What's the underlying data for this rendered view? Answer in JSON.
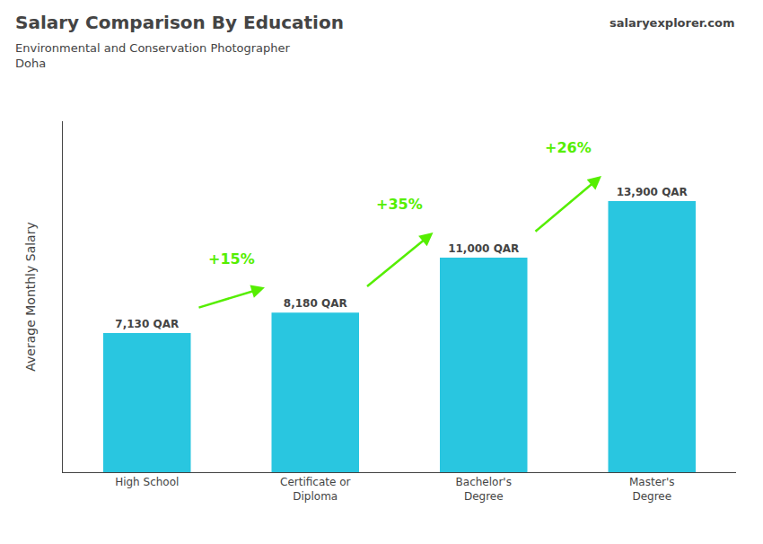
{
  "chart_data": {
    "type": "bar",
    "title": "Salary Comparison By Education",
    "subtitle": "Environmental and Conservation Photographer\nDoha",
    "categories": [
      "High School",
      "Certificate or\nDiploma",
      "Bachelor's\nDegree",
      "Master's\nDegree"
    ],
    "values": [
      7130,
      8180,
      11000,
      13900
    ],
    "value_labels": [
      "7,130 QAR",
      "8,180 QAR",
      "11,000 QAR",
      "13,900 QAR"
    ],
    "data_labels": true,
    "color": "#29c6e0",
    "ylabel": "Average Monthly Salary",
    "ylim": [
      0,
      18000
    ],
    "yticks": [],
    "tick_labels": "x",
    "grid": false,
    "annotations": [
      {
        "text": "+15%",
        "from": "High School",
        "to": "Certificate or\nDiploma",
        "color": "#55ee00"
      },
      {
        "text": "+35%",
        "from": "Certificate or\nDiploma",
        "to": "Bachelor's\nDegree",
        "color": "#55ee00"
      },
      {
        "text": "+26%",
        "from": "Bachelor's\nDegree",
        "to": "Master's\nDegree",
        "color": "#55ee00"
      },
      {
        "text": "salaryexplorer.com"
      }
    ]
  }
}
